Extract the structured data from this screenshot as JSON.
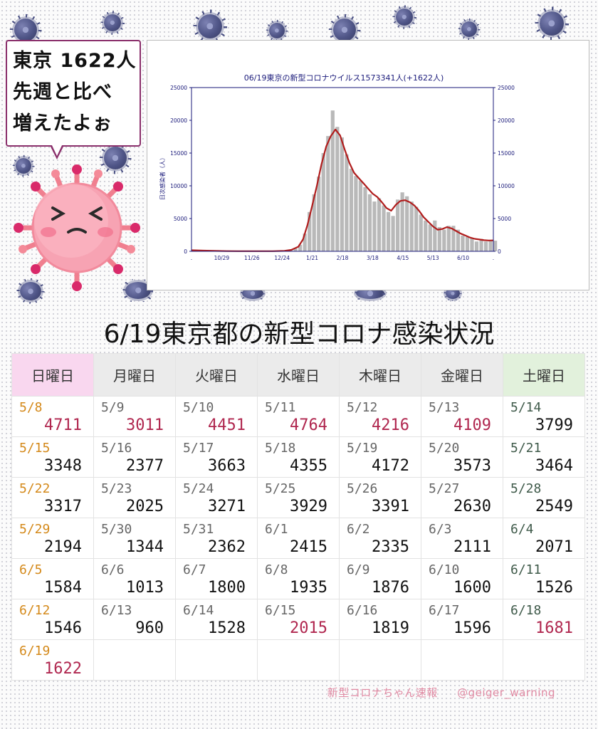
{
  "bubble": {
    "lines": [
      "東京 1622人",
      "先週と比べ",
      "増えたよぉ"
    ]
  },
  "chart_data": {
    "type": "bar",
    "title": "06/19東京の新型コロナウイルス1573341人(+1622人)",
    "ylabel": "日次感染者（人）",
    "ylim": [
      0,
      25000
    ],
    "y_ticks": [
      0,
      5000,
      10000,
      15000,
      20000,
      25000
    ],
    "x_ticks": [
      ".",
      "10/29",
      "11/26",
      "12/24",
      "1/21",
      "2/18",
      "3/18",
      "4/15",
      "5/13",
      "6/10",
      "."
    ],
    "x_range": [
      "2021-10-01",
      "2022-06-19"
    ],
    "bar_color": "#b9b9b9",
    "line_color": "#b01c1c",
    "series": [
      {
        "name": "daily",
        "values": [
          [
            0,
            180
          ],
          [
            4,
            140
          ],
          [
            8,
            120
          ],
          [
            12,
            90
          ],
          [
            16,
            70
          ],
          [
            20,
            60
          ],
          [
            24,
            45
          ],
          [
            28,
            32
          ],
          [
            32,
            28
          ],
          [
            36,
            22
          ],
          [
            40,
            18
          ],
          [
            44,
            17
          ],
          [
            48,
            16
          ],
          [
            52,
            20
          ],
          [
            56,
            18
          ],
          [
            60,
            16
          ],
          [
            64,
            20
          ],
          [
            68,
            22
          ],
          [
            72,
            30
          ],
          [
            76,
            40
          ],
          [
            80,
            70
          ],
          [
            84,
            200
          ],
          [
            88,
            430
          ],
          [
            92,
            1000
          ],
          [
            96,
            2700
          ],
          [
            100,
            6000
          ],
          [
            104,
            8700
          ],
          [
            108,
            11400
          ],
          [
            112,
            15000
          ],
          [
            116,
            17600
          ],
          [
            120,
            21500
          ],
          [
            124,
            19000
          ],
          [
            128,
            17400
          ],
          [
            132,
            14800
          ],
          [
            136,
            12600
          ],
          [
            140,
            11500
          ],
          [
            144,
            10800
          ],
          [
            148,
            9800
          ],
          [
            152,
            8700
          ],
          [
            156,
            7600
          ],
          [
            160,
            8100
          ],
          [
            164,
            7000
          ],
          [
            168,
            6000
          ],
          [
            172,
            5400
          ],
          [
            176,
            7900
          ],
          [
            180,
            9000
          ],
          [
            184,
            8400
          ],
          [
            188,
            7600
          ],
          [
            192,
            6800
          ],
          [
            196,
            5600
          ],
          [
            200,
            4700
          ],
          [
            204,
            4100
          ],
          [
            208,
            4700
          ],
          [
            212,
            3700
          ],
          [
            216,
            3300
          ],
          [
            220,
            3900
          ],
          [
            224,
            3900
          ],
          [
            228,
            3300
          ],
          [
            232,
            2400
          ],
          [
            236,
            2200
          ],
          [
            240,
            2000
          ],
          [
            244,
            1500
          ],
          [
            248,
            1900
          ],
          [
            252,
            1500
          ],
          [
            256,
            1600
          ],
          [
            260,
            1620
          ]
        ]
      },
      {
        "name": "7-day average",
        "values": [
          [
            0,
            160
          ],
          [
            10,
            110
          ],
          [
            20,
            60
          ],
          [
            30,
            30
          ],
          [
            40,
            20
          ],
          [
            50,
            18
          ],
          [
            60,
            20
          ],
          [
            70,
            25
          ],
          [
            80,
            60
          ],
          [
            86,
            220
          ],
          [
            92,
            700
          ],
          [
            96,
            1800
          ],
          [
            100,
            4100
          ],
          [
            104,
            7000
          ],
          [
            108,
            10000
          ],
          [
            112,
            13300
          ],
          [
            116,
            16000
          ],
          [
            120,
            17600
          ],
          [
            124,
            18600
          ],
          [
            128,
            17700
          ],
          [
            132,
            15500
          ],
          [
            136,
            13500
          ],
          [
            140,
            12000
          ],
          [
            144,
            11200
          ],
          [
            148,
            10400
          ],
          [
            152,
            9600
          ],
          [
            156,
            8800
          ],
          [
            160,
            8300
          ],
          [
            164,
            7500
          ],
          [
            168,
            6600
          ],
          [
            172,
            6200
          ],
          [
            176,
            7100
          ],
          [
            180,
            7700
          ],
          [
            184,
            7800
          ],
          [
            188,
            7500
          ],
          [
            192,
            7000
          ],
          [
            196,
            6200
          ],
          [
            200,
            5200
          ],
          [
            204,
            4500
          ],
          [
            208,
            3800
          ],
          [
            212,
            3300
          ],
          [
            216,
            3400
          ],
          [
            220,
            3700
          ],
          [
            224,
            3500
          ],
          [
            228,
            3100
          ],
          [
            232,
            2700
          ],
          [
            236,
            2400
          ],
          [
            240,
            2100
          ],
          [
            244,
            1900
          ],
          [
            248,
            1800
          ],
          [
            252,
            1700
          ],
          [
            256,
            1650
          ],
          [
            260,
            1660
          ]
        ]
      }
    ]
  },
  "table": {
    "title": "6/19東京都の新型コロナ感染状況",
    "headers": [
      "日曜日",
      "月曜日",
      "火曜日",
      "水曜日",
      "木曜日",
      "金曜日",
      "土曜日"
    ],
    "rows": [
      [
        {
          "date": "5/8",
          "count": "4711",
          "hi": true
        },
        {
          "date": "5/9",
          "count": "3011",
          "hi": true
        },
        {
          "date": "5/10",
          "count": "4451",
          "hi": true
        },
        {
          "date": "5/11",
          "count": "4764",
          "hi": true
        },
        {
          "date": "5/12",
          "count": "4216",
          "hi": true
        },
        {
          "date": "5/13",
          "count": "4109",
          "hi": true
        },
        {
          "date": "5/14",
          "count": "3799",
          "hi": false
        }
      ],
      [
        {
          "date": "5/15",
          "count": "3348",
          "hi": false
        },
        {
          "date": "5/16",
          "count": "2377",
          "hi": false
        },
        {
          "date": "5/17",
          "count": "3663",
          "hi": false
        },
        {
          "date": "5/18",
          "count": "4355",
          "hi": false
        },
        {
          "date": "5/19",
          "count": "4172",
          "hi": false
        },
        {
          "date": "5/20",
          "count": "3573",
          "hi": false
        },
        {
          "date": "5/21",
          "count": "3464",
          "hi": false
        }
      ],
      [
        {
          "date": "5/22",
          "count": "3317",
          "hi": false
        },
        {
          "date": "5/23",
          "count": "2025",
          "hi": false
        },
        {
          "date": "5/24",
          "count": "3271",
          "hi": false
        },
        {
          "date": "5/25",
          "count": "3929",
          "hi": false
        },
        {
          "date": "5/26",
          "count": "3391",
          "hi": false
        },
        {
          "date": "5/27",
          "count": "2630",
          "hi": false
        },
        {
          "date": "5/28",
          "count": "2549",
          "hi": false
        }
      ],
      [
        {
          "date": "5/29",
          "count": "2194",
          "hi": false
        },
        {
          "date": "5/30",
          "count": "1344",
          "hi": false
        },
        {
          "date": "5/31",
          "count": "2362",
          "hi": false
        },
        {
          "date": "6/1",
          "count": "2415",
          "hi": false
        },
        {
          "date": "6/2",
          "count": "2335",
          "hi": false
        },
        {
          "date": "6/3",
          "count": "2111",
          "hi": false
        },
        {
          "date": "6/4",
          "count": "2071",
          "hi": false
        }
      ],
      [
        {
          "date": "6/5",
          "count": "1584",
          "hi": false
        },
        {
          "date": "6/6",
          "count": "1013",
          "hi": false
        },
        {
          "date": "6/7",
          "count": "1800",
          "hi": false
        },
        {
          "date": "6/8",
          "count": "1935",
          "hi": false
        },
        {
          "date": "6/9",
          "count": "1876",
          "hi": false
        },
        {
          "date": "6/10",
          "count": "1600",
          "hi": false
        },
        {
          "date": "6/11",
          "count": "1526",
          "hi": false
        }
      ],
      [
        {
          "date": "6/12",
          "count": "1546",
          "hi": false
        },
        {
          "date": "6/13",
          "count": "960",
          "hi": false
        },
        {
          "date": "6/14",
          "count": "1528",
          "hi": false
        },
        {
          "date": "6/15",
          "count": "2015",
          "hi": true
        },
        {
          "date": "6/16",
          "count": "1819",
          "hi": false
        },
        {
          "date": "6/17",
          "count": "1596",
          "hi": false
        },
        {
          "date": "6/18",
          "count": "1681",
          "hi": true
        }
      ],
      [
        {
          "date": "6/19",
          "count": "1622",
          "hi": true
        },
        null,
        null,
        null,
        null,
        null,
        null
      ]
    ]
  },
  "footer": {
    "left": "新型コロナちゃん速報",
    "right": "@geiger_warning"
  },
  "colors": {
    "highlight": "#b0274f",
    "sunday_date": "#d4891a",
    "saturday_date": "#3f5a4a",
    "sunday_header": "#f9d7ef",
    "saturday_header": "#e2f1dc",
    "weekday_header": "#ebebeb",
    "bubble_border": "#8a2f6b",
    "footer_text": "#e08aa3"
  },
  "icons": [
    "virus-icon",
    "mascot-virus-icon"
  ]
}
